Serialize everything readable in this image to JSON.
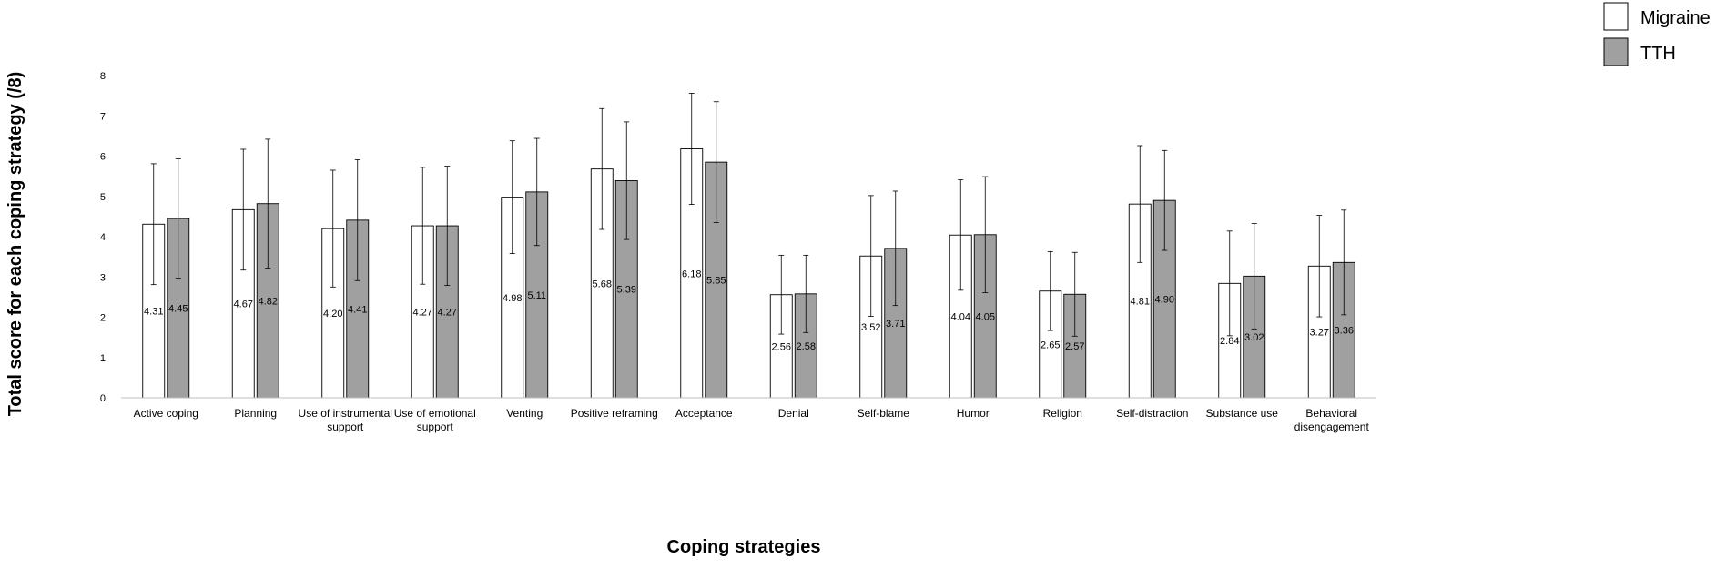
{
  "chart_data": {
    "type": "bar",
    "title": "",
    "xlabel": "Coping strategies",
    "ylabel": "Total score for each coping strategy  (/8)",
    "ylim": [
      0,
      8
    ],
    "yticks": [
      0,
      1,
      2,
      3,
      4,
      5,
      6,
      7,
      8
    ],
    "grid": false,
    "legend_position": "top-right",
    "categories": [
      [
        "Active coping"
      ],
      [
        "Planning"
      ],
      [
        "Use of instrumental",
        "support"
      ],
      [
        "Use of emotional",
        "support"
      ],
      [
        "Venting"
      ],
      [
        "Positive reframing"
      ],
      [
        "Acceptance"
      ],
      [
        "Denial"
      ],
      [
        "Self-blame"
      ],
      [
        "Humor"
      ],
      [
        "Religion"
      ],
      [
        "Self-distraction"
      ],
      [
        "Substance use"
      ],
      [
        "Behavioral",
        "disengagement"
      ]
    ],
    "series": [
      {
        "name": "Migraine",
        "color": "#ffffff",
        "values": [
          4.31,
          4.67,
          4.2,
          4.27,
          4.98,
          5.68,
          6.18,
          2.56,
          3.52,
          4.04,
          2.65,
          4.81,
          2.84,
          3.27
        ],
        "labels": [
          "4.31",
          "4.67",
          "4.20",
          "4.27",
          "4.98",
          "5.68",
          "6.18",
          "2.56",
          "3.52",
          "4.04",
          "2.65",
          "4.81",
          "2.84",
          "3.27"
        ],
        "error": [
          1.5,
          1.5,
          1.45,
          1.45,
          1.4,
          1.5,
          1.38,
          0.98,
          1.5,
          1.37,
          0.98,
          1.45,
          1.3,
          1.26
        ]
      },
      {
        "name": "TTH",
        "color": "#a0a0a0",
        "values": [
          4.45,
          4.82,
          4.41,
          4.27,
          5.11,
          5.39,
          5.85,
          2.58,
          3.71,
          4.05,
          2.57,
          4.9,
          3.02,
          3.36
        ],
        "labels": [
          "4.45",
          "4.82",
          "4.41",
          "4.27",
          "5.11",
          "5.39",
          "5.85",
          "2.58",
          "3.71",
          "4.05",
          "2.57",
          "4.90",
          "3.02",
          "3.36"
        ],
        "error": [
          1.48,
          1.6,
          1.5,
          1.48,
          1.33,
          1.46,
          1.5,
          0.96,
          1.42,
          1.44,
          1.04,
          1.24,
          1.31,
          1.3
        ]
      }
    ]
  }
}
